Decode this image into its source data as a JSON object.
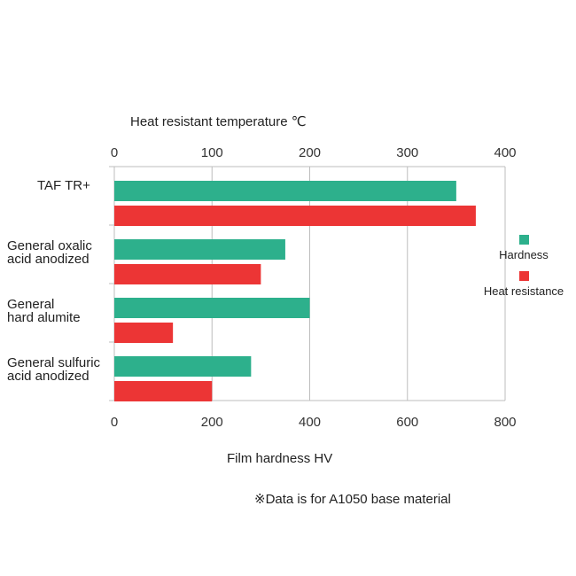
{
  "chart_data": {
    "type": "bar",
    "orientation": "horizontal",
    "title": "",
    "categories": [
      [
        "TAF TR+"
      ],
      [
        "General oxalic",
        "acid anodized"
      ],
      [
        "General",
        "hard alumite"
      ],
      [
        "General sulfuric",
        "acid anodized"
      ]
    ],
    "series": [
      {
        "name": "Hardness",
        "axis": "bottom",
        "color": "#2db08c",
        "values": [
          700,
          350,
          400,
          280
        ]
      },
      {
        "name": "Heat resistance",
        "axis": "top",
        "color": "#ec3535",
        "values": [
          370,
          150,
          60,
          100
        ]
      }
    ],
    "top_axis": {
      "label": "Heat resistant temperature ℃",
      "range": [
        0,
        400
      ],
      "ticks": [
        "0",
        "100",
        "200",
        "300",
        "400"
      ]
    },
    "bottom_axis": {
      "label": "Film hardness HV",
      "range": [
        0,
        800
      ],
      "ticks": [
        "0",
        "200",
        "400",
        "600",
        "800"
      ]
    },
    "grid": true,
    "legend": "right",
    "note": "※Data is for A1050 base material"
  }
}
